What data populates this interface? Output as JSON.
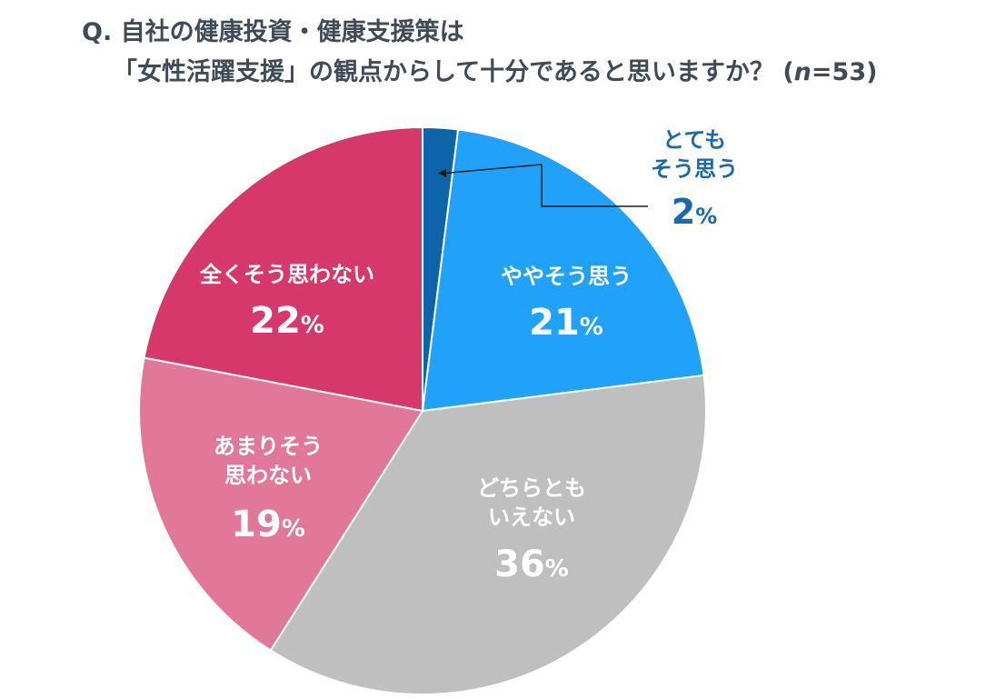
{
  "title": {
    "line1": "Q. 自社の健康投資・健康支援策は",
    "line2_main": "「女性活躍支援」の観点からして十分であると思いますか？",
    "line2_n_open": "(",
    "line2_n_var": "n",
    "line2_n_rest": "=53)"
  },
  "chart_data": {
    "type": "pie",
    "start_angle": "12 o'clock",
    "direction": "clockwise",
    "slices": [
      {
        "label_lines": [
          "とても",
          "そう思う"
        ],
        "value": 2,
        "value_text": "2",
        "unit": "%",
        "color": "#0d64a8",
        "label_color": "#1a6aaa",
        "label_outside": true
      },
      {
        "label_lines": [
          "ややそう思う"
        ],
        "value": 21,
        "value_text": "21",
        "unit": "%",
        "color": "#20a2fb",
        "label_color": "#ffffff",
        "label_outside": false
      },
      {
        "label_lines": [
          "どちらとも",
          "いえない"
        ],
        "value": 36,
        "value_text": "36",
        "unit": "%",
        "color": "#bfbfbf",
        "label_color": "#ffffff",
        "label_outside": false
      },
      {
        "label_lines": [
          "あまりそう",
          "思わない"
        ],
        "value": 19,
        "value_text": "19",
        "unit": "%",
        "color": "#e17799",
        "label_color": "#ffffff",
        "label_outside": false
      },
      {
        "label_lines": [
          "全くそう思わない"
        ],
        "value": 22,
        "value_text": "22",
        "unit": "%",
        "color": "#d6386b",
        "label_color": "#ffffff",
        "label_outside": false
      }
    ]
  }
}
